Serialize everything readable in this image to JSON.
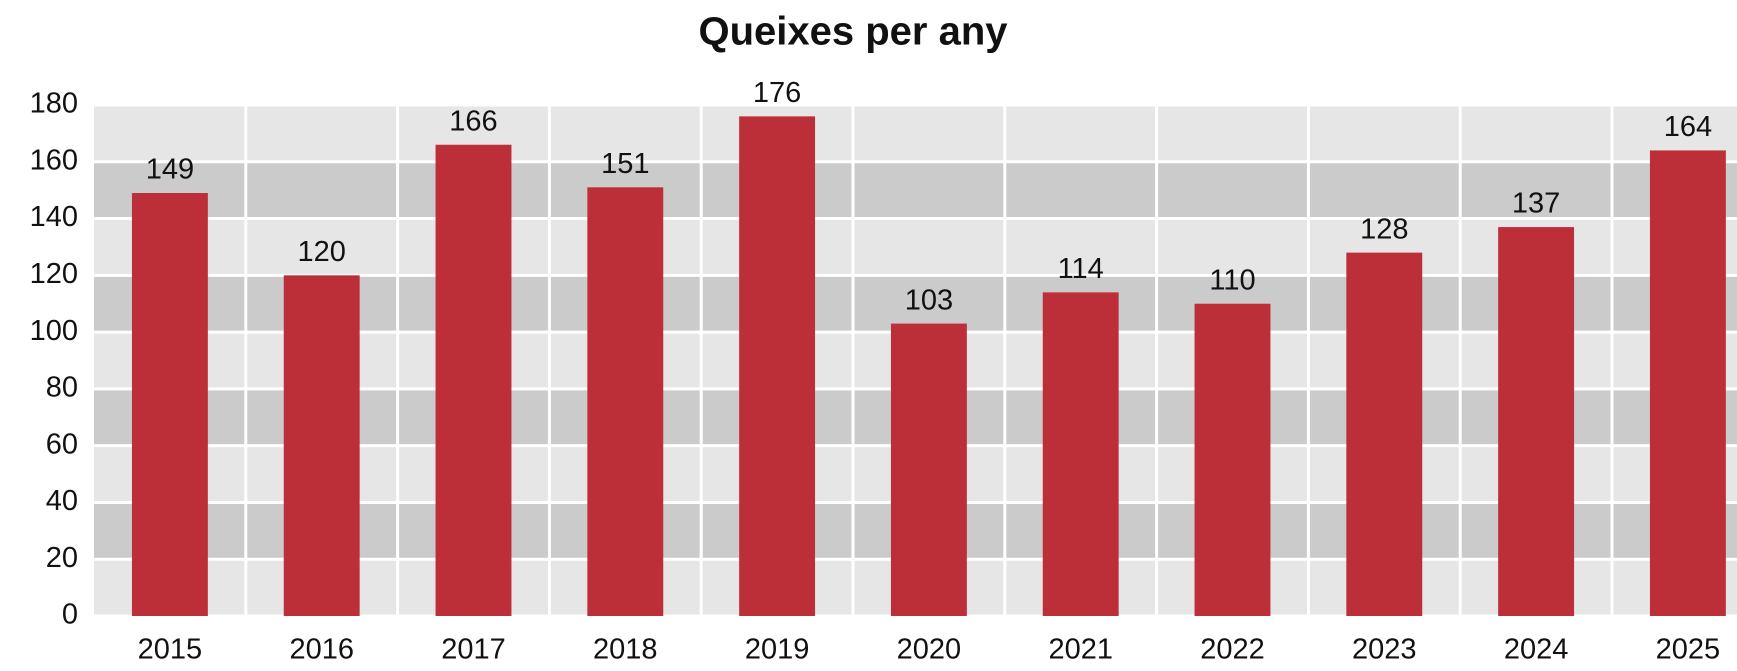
{
  "chart_data": {
    "type": "bar",
    "title": "Queixes per any",
    "categories": [
      "2015",
      "2016",
      "2017",
      "2018",
      "2019",
      "2020",
      "2021",
      "2022",
      "2023",
      "2024",
      "2025"
    ],
    "values": [
      149,
      120,
      166,
      151,
      176,
      103,
      114,
      110,
      128,
      137,
      164
    ],
    "color": "#bc2f38",
    "ylim": [
      0,
      180
    ],
    "yticks": [
      0,
      20,
      40,
      60,
      80,
      100,
      120,
      140,
      160,
      180
    ],
    "grid": true
  }
}
